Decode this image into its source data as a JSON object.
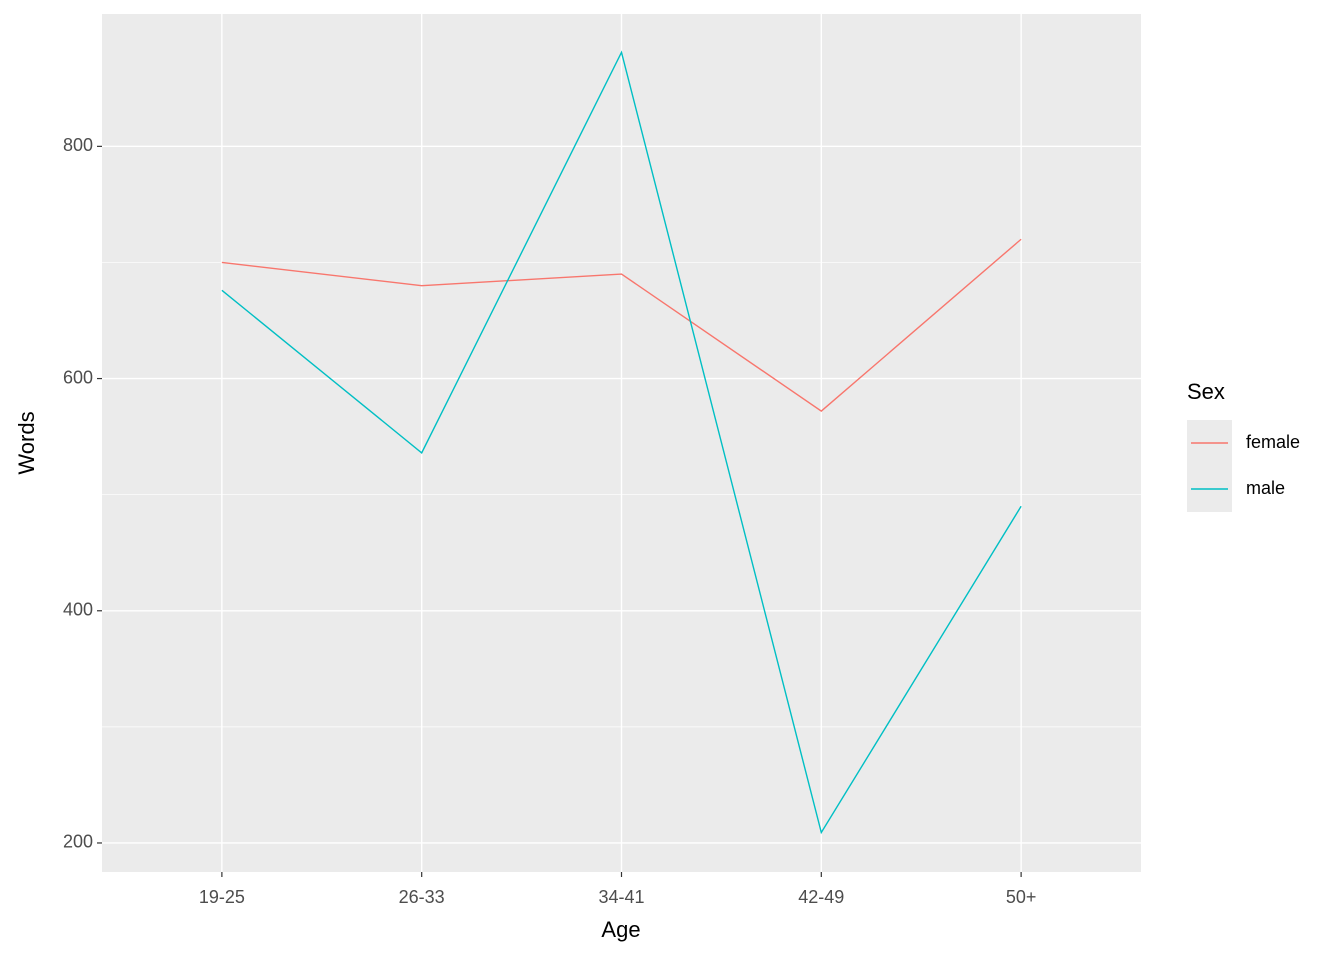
{
  "chart_data": {
    "type": "line",
    "x_label": "Age",
    "y_label": "Words",
    "categories": [
      "19-25",
      "26-33",
      "34-41",
      "42-49",
      "50+"
    ],
    "series": [
      {
        "name": "female",
        "color": "#f8766d",
        "values": [
          700,
          680,
          690,
          572,
          720
        ]
      },
      {
        "name": "male",
        "color": "#00bfc4",
        "values": [
          676,
          536,
          881,
          209,
          490
        ]
      }
    ],
    "legend_title": "Sex",
    "ylim": [
      175,
      914
    ],
    "yticks": [
      200,
      400,
      600,
      800
    ],
    "grid": true,
    "minor_grid": true,
    "legend": "right"
  }
}
